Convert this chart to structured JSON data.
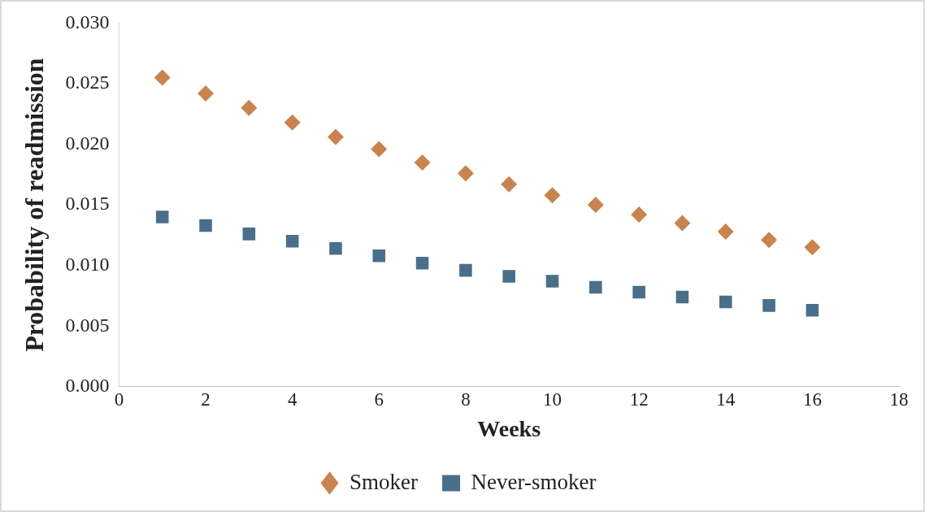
{
  "chart_data": {
    "type": "scatter",
    "xlabel": "Weeks",
    "ylabel": "Probability of readmission",
    "x": [
      1,
      2,
      3,
      4,
      5,
      6,
      7,
      8,
      9,
      10,
      11,
      12,
      13,
      14,
      15,
      16
    ],
    "series": [
      {
        "name": "Smoker",
        "color": "#c8844e",
        "marker": "diamond",
        "values": [
          0.0255,
          0.0242,
          0.023,
          0.0218,
          0.0206,
          0.0196,
          0.0185,
          0.0176,
          0.0167,
          0.0158,
          0.015,
          0.0142,
          0.0135,
          0.0128,
          0.0121,
          0.0115
        ]
      },
      {
        "name": "Never-smoker",
        "color": "#4a6f8a",
        "marker": "square",
        "values": [
          0.014,
          0.0133,
          0.0126,
          0.012,
          0.0114,
          0.0108,
          0.0102,
          0.0096,
          0.0091,
          0.0087,
          0.0082,
          0.0078,
          0.0074,
          0.007,
          0.0067,
          0.0063
        ]
      }
    ],
    "xlim": [
      0,
      18
    ],
    "xticks": [
      0,
      2,
      4,
      6,
      8,
      10,
      12,
      14,
      16,
      18
    ],
    "ylim": [
      0,
      0.03
    ],
    "yticks": [
      {
        "value": 0,
        "label": "0.000"
      },
      {
        "value": 0.005,
        "label": "0.005"
      },
      {
        "value": 0.01,
        "label": "0.010"
      },
      {
        "value": 0.015,
        "label": "0.015"
      },
      {
        "value": 0.02,
        "label": "0.020"
      },
      {
        "value": 0.025,
        "label": "0.025"
      },
      {
        "value": 0.03,
        "label": "0.030"
      }
    ],
    "grid": false,
    "legend": "bottom"
  }
}
